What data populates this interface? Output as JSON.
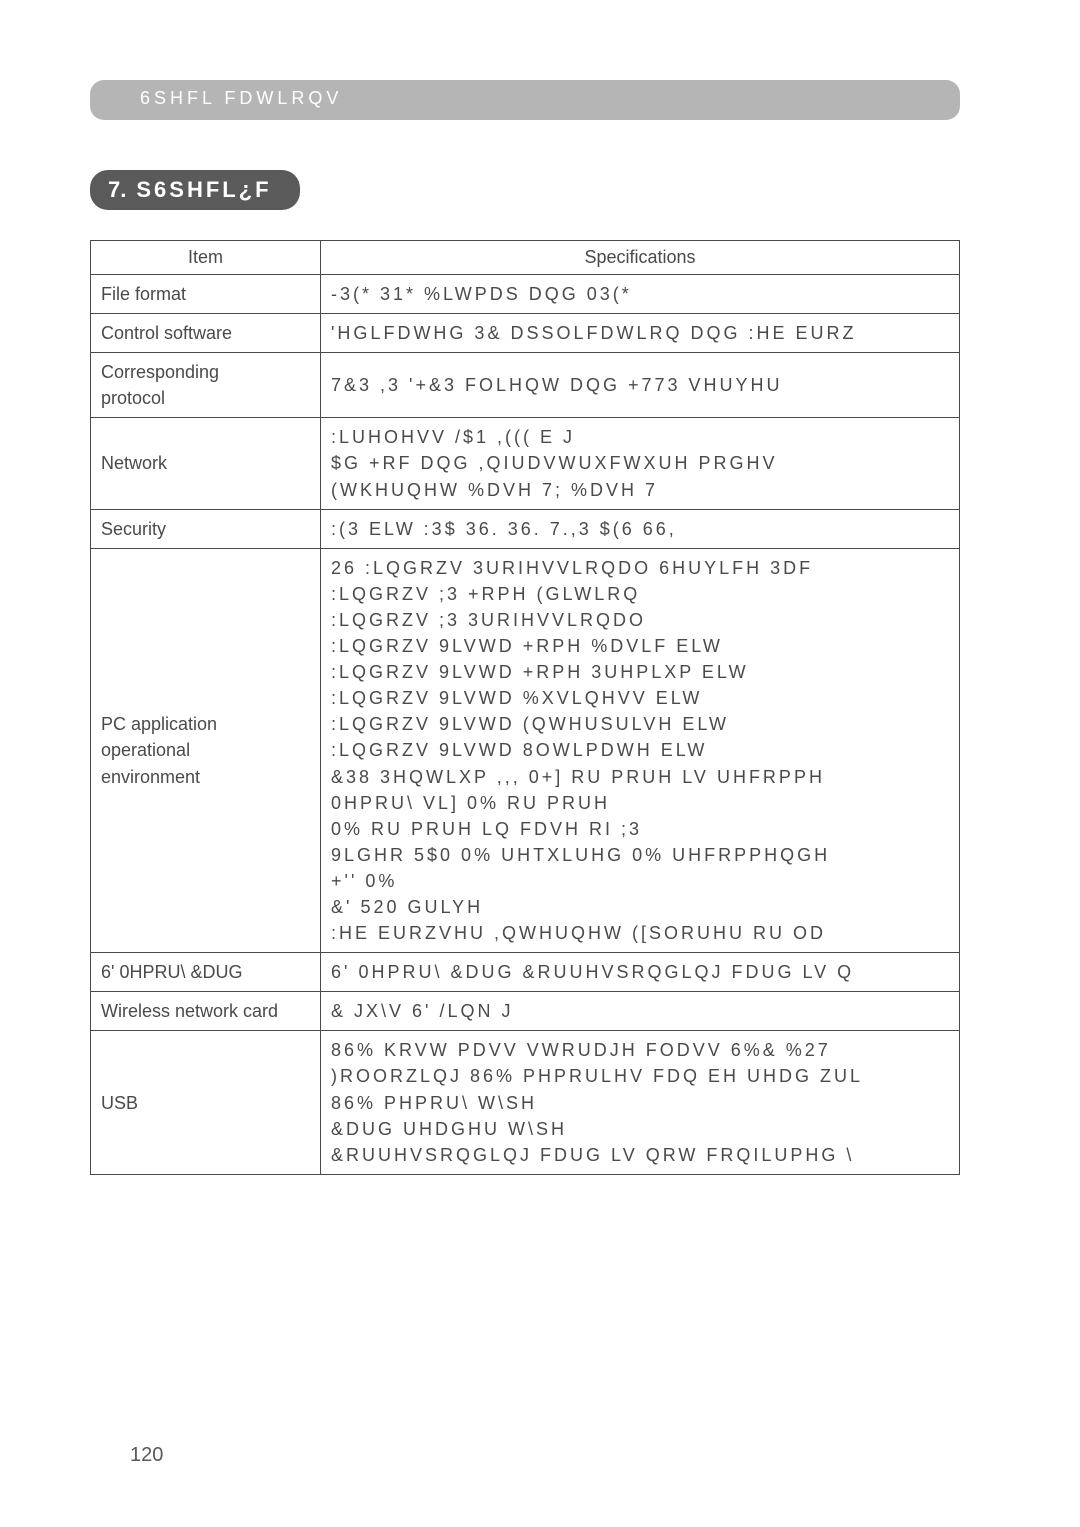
{
  "header": {
    "text": "6SHFL FDWLRQV"
  },
  "badge": {
    "number": "7.",
    "text": "S6SHFL¿F"
  },
  "table": {
    "head_item": "Item",
    "head_spec": "Specifications",
    "rows": [
      {
        "item": "File format",
        "spec": "-3(*  31*  %LWPDS DQG 03(*"
      },
      {
        "item": "Control software",
        "spec": "'HGLFDWHG 3& DSSOLFDWLRQ DQG :HE EURZ"
      },
      {
        "item": "Corresponding\nprotocol",
        "spec": "7&3 ,3 '+&3 FOLHQW DQG +773 VHUYHU"
      },
      {
        "item": "Network",
        "spec": ":LUHOHVV /$1 ,(((    E J\n$G +RF DQG ,QIUDVWUXFWXUH PRGHV\n(WKHUQHW    %DVH 7;   %DVH 7"
      },
      {
        "item": "Security",
        "spec": ":(3    ELW  :3$ 36. 36.  7.,3 $(6  66,"
      },
      {
        "item": "PC application\noperational\nenvironment",
        "spec": "26 :LQGRZV     3URIHVVLRQDO  6HUYLFH 3DF\n   :LQGRZV ;3 +RPH (GLWLRQ\n   :LQGRZV ;3 3URIHVVLRQDO\n   :LQGRZV 9LVWD +RPH %DVLF    ELW\n   :LQGRZV 9LVWD +RPH 3UHPLXP    ELW\n   :LQGRZV 9LVWD %XVLQHVV    ELW\n   :LQGRZV 9LVWD (QWHUSULVH    ELW\n   :LQGRZV 9LVWD 8OWLPDWH    ELW\n&38 3HQWLXP ,,,    0+] RU PRUH LV UHFRPPH\n0HPRU\\ VL]  0% RU PRUH\n            0% RU PRUH  LQ FDVH RI ;3 \n9LGHR 5$0  0% UHTXLUHG   0% UHFRPPHQGH\n+''     0%\n&' 520 GULYH\n:HE EURZVHU  ,QWHUQHW ([SORUHU     RU OD"
      },
      {
        "item": "6' 0HPRU\\ &DUG",
        "spec": "6' 0HPRU\\ &DUG  &RUUHVSRQGLQJ FDUG LV Q"
      },
      {
        "item": "Wireless network card",
        "spec": "& JX\\V 6' /LQN  J"
      },
      {
        "item": "USB",
        "spec": "86%     KRVW PDVV VWRUDJH FODVV 6%& %27 \n)ROORZLQJ 86% PHPRULHV FDQ EH UHDG ZUL\n    86% PHPRU\\ W\\SH\n    &DUG UHDGHU W\\SH\n &RUUHVSRQGLQJ FDUG LV QRW FRQILUPHG \\"
      }
    ]
  },
  "page_number": "120",
  "colors": {
    "header_bg": "#b5b5b5",
    "header_text": "#ffffff",
    "badge_bg": "#5a5a5a",
    "body_text": "#4a4a4a"
  }
}
